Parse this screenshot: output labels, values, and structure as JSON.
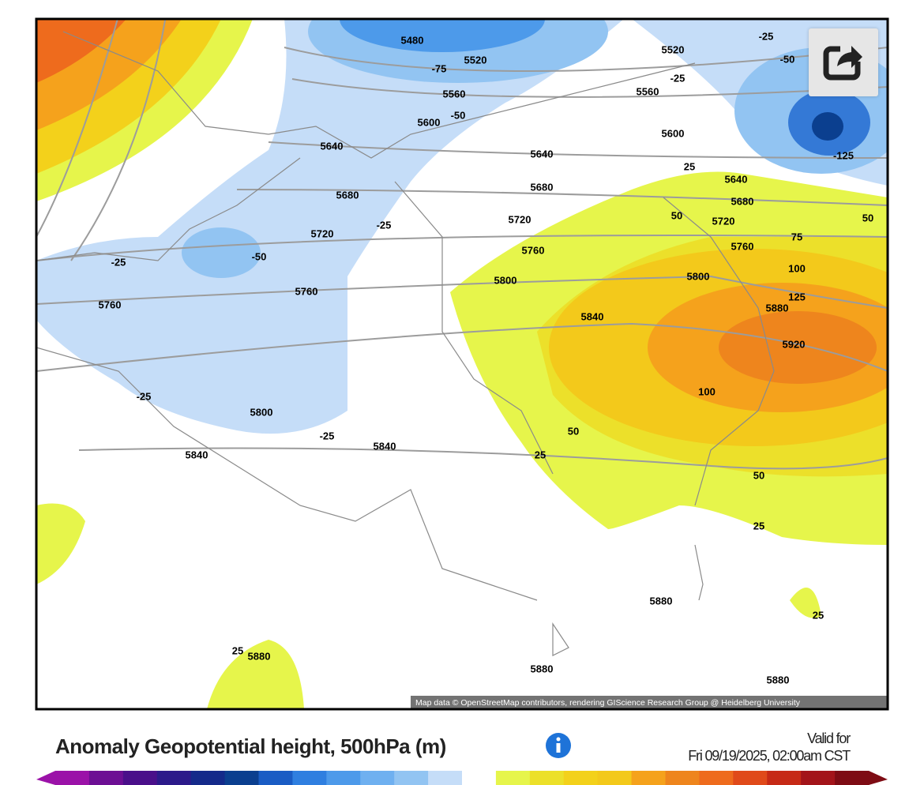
{
  "map": {
    "contour_labels": [
      5480,
      -75,
      5520,
      5520,
      -25,
      -50,
      -25,
      5560,
      5560,
      5600,
      -50,
      5600,
      -125,
      5640,
      5640,
      25,
      5640,
      5680,
      5680,
      5680,
      5720,
      -25,
      5720,
      50,
      5720,
      50,
      75,
      -50,
      5760,
      5760,
      -25,
      100,
      5800,
      5800,
      5760,
      5760,
      125,
      5880,
      5840,
      5920,
      100,
      -25,
      5800,
      -25,
      50,
      5840,
      5840,
      25,
      50,
      25,
      5880,
      25,
      25,
      5880,
      5880,
      5880
    ],
    "attribution": "Map data © OpenStreetMap contributors, rendering GIScience Research Group @ Heidelberg University"
  },
  "legend": {
    "title": "Anomaly Geopotential height, 500hPa (m)",
    "valid_label": "Valid for",
    "valid_time": "Fri 09/19/2025, 02:00am CST"
  }
}
